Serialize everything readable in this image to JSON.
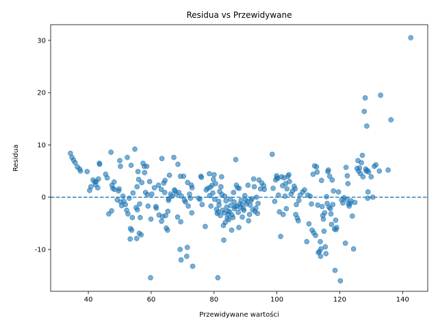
{
  "chart_data": {
    "type": "scatter",
    "title": "Residua vs Przewidywane",
    "xlabel": "Przewidywane wartości",
    "ylabel": "Residua",
    "xlim": [
      28,
      148
    ],
    "ylim": [
      -18,
      33
    ],
    "xticks": [
      40,
      60,
      80,
      100,
      120,
      140
    ],
    "yticks": [
      -10,
      0,
      10,
      20,
      30
    ],
    "grid": false,
    "legend": "none",
    "point_color": "#1f77b4",
    "point_opacity": 0.6,
    "reference_line": {
      "y": 0,
      "style": "dashed",
      "color": "#1f77b4"
    },
    "series": [
      {
        "points": [
          [
            34.3,
            8.4
          ],
          [
            34.8,
            7.6
          ],
          [
            35.3,
            7.1
          ],
          [
            35.8,
            6.6
          ],
          [
            36.5,
            5.8
          ],
          [
            37.2,
            5.4
          ],
          [
            37.5,
            5.0
          ],
          [
            39.6,
            4.9
          ],
          [
            40.4,
            1.3
          ],
          [
            40.8,
            2.0
          ],
          [
            41.5,
            3.3
          ],
          [
            42.0,
            2.9
          ],
          [
            42.5,
            3.0
          ],
          [
            42.3,
            2.4
          ],
          [
            43.0,
            1.8
          ],
          [
            43.5,
            6.5
          ],
          [
            43.6,
            6.3
          ],
          [
            43.2,
            3.5
          ],
          [
            45.5,
            4.4
          ],
          [
            46.0,
            3.7
          ],
          [
            46.5,
            -3.2
          ],
          [
            47.2,
            8.6
          ],
          [
            47.5,
            2.3
          ],
          [
            47.8,
            1.7
          ],
          [
            48.2,
            2.9
          ],
          [
            48.3,
            1.5
          ],
          [
            47.4,
            -2.6
          ],
          [
            49.2,
            -0.5
          ],
          [
            49.6,
            1.2
          ],
          [
            49.8,
            1.6
          ],
          [
            50.0,
            7.0
          ],
          [
            50.2,
            5.9
          ],
          [
            50.3,
            -0.9
          ],
          [
            50.6,
            -1.6
          ],
          [
            51.0,
            0.2
          ],
          [
            51.3,
            -0.8
          ],
          [
            51.8,
            -1.4
          ],
          [
            52.2,
            -2.5
          ],
          [
            52.4,
            7.6
          ],
          [
            52.6,
            -3.2
          ],
          [
            53.0,
            -0.2
          ],
          [
            53.6,
            6.1
          ],
          [
            53.4,
            -6.0
          ],
          [
            53.8,
            -6.3
          ],
          [
            53.3,
            -8.0
          ],
          [
            54.2,
            0.8
          ],
          [
            54.8,
            9.2
          ],
          [
            54.0,
            -3.9
          ],
          [
            55.2,
            -2.0
          ],
          [
            55.4,
            -7.9
          ],
          [
            55.8,
            4.9
          ],
          [
            55.5,
            2.0
          ],
          [
            55.6,
            -2.4
          ],
          [
            56.0,
            3.4
          ],
          [
            56.3,
            -1.3
          ],
          [
            56.2,
            -6.9
          ],
          [
            56.5,
            -3.9
          ],
          [
            56.8,
            -7.2
          ],
          [
            57.0,
            2.8
          ],
          [
            57.4,
            6.5
          ],
          [
            57.8,
            5.9
          ],
          [
            57.9,
            4.7
          ],
          [
            58.2,
            0.9
          ],
          [
            58.6,
            5.9
          ],
          [
            58.8,
            0.5
          ],
          [
            59.0,
            -1.7
          ],
          [
            59.5,
            3.0
          ],
          [
            59.8,
            -15.4
          ],
          [
            59.9,
            -4.2
          ],
          [
            60.2,
            0.6
          ],
          [
            61.0,
            1.8
          ],
          [
            61.5,
            -1.8
          ],
          [
            61.6,
            -2.1
          ],
          [
            62.3,
            2.3
          ],
          [
            62.5,
            -3.4
          ],
          [
            63.2,
            1.5
          ],
          [
            63.4,
            7.4
          ],
          [
            63.6,
            -3.7
          ],
          [
            63.3,
            -4.6
          ],
          [
            64.0,
            2.7
          ],
          [
            64.3,
            0.9
          ],
          [
            64.4,
            3.2
          ],
          [
            64.6,
            -3.5
          ],
          [
            64.8,
            -5.9
          ],
          [
            65.2,
            -6.3
          ],
          [
            65.3,
            -2.7
          ],
          [
            65.6,
            -0.3
          ],
          [
            65.5,
            -0.6
          ],
          [
            65.8,
            4.2
          ],
          [
            66.2,
            0.6
          ],
          [
            66.6,
            0.2
          ],
          [
            67.2,
            7.6
          ],
          [
            67.4,
            1.4
          ],
          [
            67.6,
            1.2
          ],
          [
            68.0,
            0.6
          ],
          [
            68.4,
            -3.8
          ],
          [
            68.5,
            6.3
          ],
          [
            68.8,
            0.9
          ],
          [
            69.3,
            4.0
          ],
          [
            69.6,
            0.2
          ],
          [
            69.4,
            -4.7
          ],
          [
            69.2,
            -10.0
          ],
          [
            69.5,
            -12.0
          ],
          [
            70.3,
            4.0
          ],
          [
            70.6,
            -0.6
          ],
          [
            70.9,
            -0.9
          ],
          [
            71.3,
            -11.3
          ],
          [
            71.5,
            -9.6
          ],
          [
            71.6,
            2.8
          ],
          [
            71.8,
            -1.7
          ],
          [
            72.2,
            0.6
          ],
          [
            72.5,
            -0.2
          ],
          [
            72.8,
            2.3
          ],
          [
            73.0,
            1.8
          ],
          [
            73.2,
            -13.2
          ],
          [
            72.9,
            -3.0
          ],
          [
            75.1,
            -0.2
          ],
          [
            75.5,
            -0.4
          ],
          [
            75.8,
            4.0
          ],
          [
            76.0,
            3.8
          ],
          [
            76.2,
            -1.4
          ],
          [
            77.2,
            -5.6
          ],
          [
            77.5,
            1.4
          ],
          [
            78.0,
            1.7
          ],
          [
            78.6,
            0.3
          ],
          [
            78.8,
            1.9
          ],
          [
            78.5,
            4.5
          ],
          [
            79.0,
            -1.7
          ],
          [
            79.4,
            2.3
          ],
          [
            79.6,
            0.8
          ],
          [
            79.8,
            3.4
          ],
          [
            80.0,
            4.3
          ],
          [
            80.2,
            -0.4
          ],
          [
            80.5,
            2.6
          ],
          [
            80.8,
            -2.3
          ],
          [
            81.0,
            -3.1
          ],
          [
            81.2,
            -15.4
          ],
          [
            81.3,
            -2.8
          ],
          [
            81.5,
            -0.8
          ],
          [
            81.6,
            -1.5
          ],
          [
            81.8,
            1.1
          ],
          [
            82.0,
            -3.5
          ],
          [
            82.2,
            2.0
          ],
          [
            82.4,
            3.9
          ],
          [
            82.5,
            0.5
          ],
          [
            82.7,
            -2.5
          ],
          [
            83.0,
            -5.4
          ],
          [
            83.1,
            -8.2
          ],
          [
            83.3,
            -3.0
          ],
          [
            83.4,
            0.2
          ],
          [
            83.6,
            -4.8
          ],
          [
            83.8,
            -0.7
          ],
          [
            84.0,
            -1.9
          ],
          [
            84.2,
            -4.0
          ],
          [
            84.4,
            -2.7
          ],
          [
            84.5,
            -3.3
          ],
          [
            84.7,
            -4.3
          ],
          [
            85.0,
            -2.8
          ],
          [
            85.2,
            -0.4
          ],
          [
            85.3,
            -1.6
          ],
          [
            85.6,
            -6.3
          ],
          [
            85.7,
            -3.4
          ],
          [
            86.0,
            -3.9
          ],
          [
            86.2,
            0.9
          ],
          [
            86.4,
            -0.9
          ],
          [
            86.5,
            -2.2
          ],
          [
            86.7,
            -1.8
          ],
          [
            86.9,
            7.2
          ],
          [
            87.1,
            2.3
          ],
          [
            87.3,
            -1.7
          ],
          [
            87.5,
            1.8
          ],
          [
            87.7,
            -2.9
          ],
          [
            87.9,
            -5.8
          ],
          [
            88.0,
            1.7
          ],
          [
            88.2,
            -1.3
          ],
          [
            88.4,
            -2.0
          ],
          [
            88.6,
            -0.6
          ],
          [
            88.9,
            -1.4
          ],
          [
            89.0,
            -3.8
          ],
          [
            89.3,
            -2.2
          ],
          [
            89.5,
            -2.5
          ],
          [
            89.8,
            0.3
          ],
          [
            90.0,
            -0.5
          ],
          [
            90.3,
            -1.3
          ],
          [
            90.6,
            -0.8
          ],
          [
            90.8,
            2.3
          ],
          [
            91.0,
            -4.5
          ],
          [
            91.3,
            -3.3
          ],
          [
            91.5,
            -1.5
          ],
          [
            91.8,
            -0.6
          ],
          [
            92.0,
            -0.3
          ],
          [
            92.3,
            -2.4
          ],
          [
            92.6,
            3.5
          ],
          [
            92.8,
            2.0
          ],
          [
            93.0,
            -2.7
          ],
          [
            93.3,
            -2.1
          ],
          [
            93.5,
            0.0
          ],
          [
            93.8,
            -3.1
          ],
          [
            94.0,
            -1.2
          ],
          [
            94.3,
            3.3
          ],
          [
            94.8,
            1.6
          ],
          [
            95.2,
            2.7
          ],
          [
            95.8,
            2.2
          ],
          [
            96.0,
            1.5
          ],
          [
            98.5,
            8.2
          ],
          [
            98.8,
            1.7
          ],
          [
            99.3,
            -0.8
          ],
          [
            99.6,
            3.3
          ],
          [
            99.9,
            4.1
          ],
          [
            100.0,
            3.7
          ],
          [
            100.3,
            3.6
          ],
          [
            100.5,
            0.4
          ],
          [
            100.8,
            -2.8
          ],
          [
            101.2,
            -7.5
          ],
          [
            101.5,
            3.9
          ],
          [
            101.8,
            2.2
          ],
          [
            102.0,
            -3.3
          ],
          [
            102.3,
            3.7
          ],
          [
            102.6,
            0.2
          ],
          [
            102.8,
            2.6
          ],
          [
            103.0,
            -2.2
          ],
          [
            103.2,
            1.6
          ],
          [
            103.5,
            4.0
          ],
          [
            103.8,
            4.3
          ],
          [
            104.0,
            3.0
          ],
          [
            104.5,
            0.6
          ],
          [
            105.0,
            1.2
          ],
          [
            105.5,
            2.1
          ],
          [
            105.8,
            1.6
          ],
          [
            106.0,
            -3.3
          ],
          [
            106.2,
            -1.4
          ],
          [
            106.5,
            -4.0
          ],
          [
            106.8,
            -4.5
          ],
          [
            107.0,
            -0.6
          ],
          [
            107.4,
            0.4
          ],
          [
            108.2,
            1.0
          ],
          [
            108.8,
            1.4
          ],
          [
            109.5,
            -8.5
          ],
          [
            109.8,
            0.4
          ],
          [
            110.2,
            -5.1
          ],
          [
            110.6,
            0.2
          ],
          [
            111.0,
            -1.3
          ],
          [
            111.2,
            -6.3
          ],
          [
            111.5,
            4.4
          ],
          [
            111.7,
            -6.8
          ],
          [
            112.0,
            6.0
          ],
          [
            112.3,
            -7.3
          ],
          [
            112.6,
            5.8
          ],
          [
            112.8,
            4.8
          ],
          [
            113.0,
            -1.5
          ],
          [
            113.2,
            -10.6
          ],
          [
            113.5,
            -10.4
          ],
          [
            113.8,
            -8.5
          ],
          [
            113.9,
            -11.3
          ],
          [
            114.0,
            -9.9
          ],
          [
            114.2,
            3.2
          ],
          [
            114.4,
            -1.8
          ],
          [
            114.6,
            -3.5
          ],
          [
            114.8,
            -4.2
          ],
          [
            115.0,
            -6.5
          ],
          [
            115.2,
            -3.0
          ],
          [
            115.4,
            -9.5
          ],
          [
            115.6,
            -10.8
          ],
          [
            115.8,
            0.1
          ],
          [
            116.0,
            -1.2
          ],
          [
            116.2,
            4.9
          ],
          [
            116.4,
            5.2
          ],
          [
            116.6,
            -1.9
          ],
          [
            116.8,
            4.0
          ],
          [
            117.0,
            -2.2
          ],
          [
            117.2,
            -3.2
          ],
          [
            117.4,
            -5.2
          ],
          [
            117.6,
            3.3
          ],
          [
            117.8,
            -1.4
          ],
          [
            118.0,
            1.2
          ],
          [
            118.3,
            -6.1
          ],
          [
            118.5,
            -14.0
          ],
          [
            118.7,
            -4.4
          ],
          [
            118.8,
            -6.2
          ],
          [
            119.0,
            -5.8
          ],
          [
            119.6,
            1.0
          ],
          [
            120.2,
            -16.0
          ],
          [
            120.6,
            -0.5
          ],
          [
            121.0,
            -1.1
          ],
          [
            121.4,
            -0.1
          ],
          [
            121.8,
            -8.8
          ],
          [
            122.0,
            5.7
          ],
          [
            122.2,
            -0.4
          ],
          [
            122.4,
            4.1
          ],
          [
            122.6,
            2.6
          ],
          [
            122.8,
            -1.3
          ],
          [
            123.0,
            -1.7
          ],
          [
            123.3,
            -1.2
          ],
          [
            123.6,
            -0.7
          ],
          [
            124.0,
            -3.6
          ],
          [
            124.4,
            -9.9
          ],
          [
            124.8,
            -1.0
          ],
          [
            125.5,
            5.5
          ],
          [
            125.8,
            7.0
          ],
          [
            126.0,
            5.0
          ],
          [
            126.3,
            5.6
          ],
          [
            126.6,
            4.5
          ],
          [
            126.9,
            6.6
          ],
          [
            127.2,
            8.0
          ],
          [
            127.4,
            3.9
          ],
          [
            127.8,
            16.4
          ],
          [
            128.1,
            19.0
          ],
          [
            128.3,
            5.4
          ],
          [
            128.4,
            5.0
          ],
          [
            128.6,
            13.6
          ],
          [
            128.8,
            5.1
          ],
          [
            129.0,
            1.0
          ],
          [
            129.2,
            4.8
          ],
          [
            128.9,
            -0.2
          ],
          [
            130.0,
            3.9
          ],
          [
            130.5,
            0.0
          ],
          [
            131.0,
            5.9
          ],
          [
            131.5,
            6.2
          ],
          [
            132.6,
            5.0
          ],
          [
            133.0,
            19.5
          ],
          [
            135.4,
            5.2
          ],
          [
            136.3,
            14.8
          ],
          [
            142.6,
            30.5
          ]
        ]
      }
    ]
  }
}
